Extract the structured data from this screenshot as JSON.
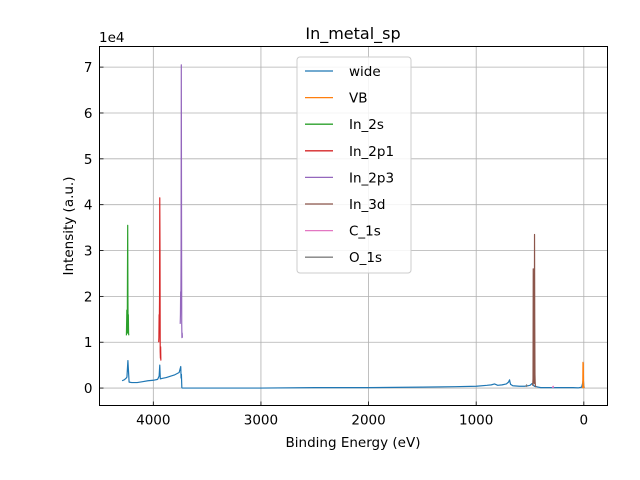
{
  "chart_data": {
    "type": "line",
    "title": "In_metal_sp",
    "xlabel": "Binding Energy (eV)",
    "ylabel": "Intensity (a.u.)",
    "y_offset_label": "1e4",
    "x_reversed": true,
    "xlim": [
      4500,
      -220
    ],
    "ylim": [
      -3800,
      74500
    ],
    "grid": true,
    "legend_position": "top-center",
    "x_ticks": [
      4000,
      3000,
      2000,
      1000,
      0
    ],
    "x_tick_labels": [
      "4000",
      "3000",
      "2000",
      "1000",
      "0"
    ],
    "y_ticks": [
      0,
      10000,
      20000,
      30000,
      40000,
      50000,
      60000,
      70000
    ],
    "y_tick_labels": [
      "0",
      "1",
      "2",
      "3",
      "4",
      "5",
      "6",
      "7"
    ],
    "series": [
      {
        "name": "wide",
        "color": "#1f77b4",
        "x": [
          4290,
          4270,
          4255,
          4245,
          4236,
          4225,
          4200,
          4150,
          4100,
          4050,
          4000,
          3960,
          3946,
          3940,
          3935,
          3920,
          3880,
          3840,
          3800,
          3760,
          3745,
          3742,
          3739,
          3735,
          3730,
          3720,
          3700,
          3500,
          3000,
          2500,
          2000,
          1500,
          1200,
          1000,
          900,
          860,
          830,
          800,
          760,
          720,
          700,
          690,
          685,
          680,
          660,
          600,
          550,
          520,
          500,
          480,
          460,
          440,
          420,
          400,
          300,
          200,
          100,
          50,
          20,
          10,
          5,
          0,
          -5
        ],
        "y": [
          1600,
          1800,
          2100,
          2400,
          6000,
          1300,
          1200,
          1200,
          1400,
          1600,
          1700,
          1900,
          2600,
          5000,
          2000,
          2100,
          2300,
          2600,
          2900,
          3400,
          4700,
          2200,
          3000,
          100,
          0,
          0,
          0,
          0,
          0,
          100,
          100,
          200,
          300,
          400,
          600,
          700,
          900,
          600,
          700,
          900,
          1300,
          1800,
          1200,
          800,
          500,
          400,
          400,
          500,
          600,
          1000,
          400,
          300,
          200,
          100,
          100,
          100,
          100,
          50,
          200,
          1200,
          2000,
          400,
          100
        ]
      },
      {
        "name": "VB",
        "color": "#ff7f0e",
        "x": [
          12,
          10,
          8,
          6,
          5,
          4,
          3,
          2,
          1,
          0,
          -1,
          -2
        ],
        "y": [
          0,
          200,
          5600,
          4800,
          5400,
          3000,
          1200,
          600,
          300,
          200,
          100,
          0
        ]
      },
      {
        "name": "In_2s",
        "color": "#2ca02c",
        "x": [
          4250,
          4248,
          4246,
          4244,
          4242,
          4240,
          4238,
          4236,
          4234,
          4232,
          4230,
          4228
        ],
        "y": [
          11500,
          14000,
          17000,
          13000,
          12000,
          25000,
          35500,
          20000,
          12000,
          16000,
          12000,
          11500
        ]
      },
      {
        "name": "In_2p1",
        "color": "#d62728",
        "x": [
          3950,
          3948,
          3946,
          3944,
          3942,
          3940,
          3938,
          3936,
          3934,
          3932,
          3930
        ],
        "y": [
          10000,
          11000,
          16000,
          14000,
          20000,
          41500,
          30000,
          8000,
          6500,
          9000,
          6000
        ]
      },
      {
        "name": "In_2p3",
        "color": "#9467bd",
        "x": [
          3750,
          3748,
          3746,
          3744,
          3742,
          3740,
          3738,
          3736,
          3734,
          3732,
          3730
        ],
        "y": [
          14000,
          16000,
          21000,
          19000,
          30000,
          70500,
          40000,
          14000,
          11000,
          12000,
          11000
        ]
      },
      {
        "name": "In_3d",
        "color": "#8c564b",
        "x": [
          475,
          472,
          470,
          468,
          466,
          464,
          462,
          460,
          458,
          456,
          454,
          452,
          450,
          448,
          446,
          444
        ],
        "y": [
          500,
          2000,
          26000,
          10000,
          3000,
          1500,
          1000,
          2000,
          33500,
          15000,
          3000,
          1200,
          600,
          400,
          300,
          300
        ]
      },
      {
        "name": "C_1s",
        "color": "#e377c2",
        "x": [
          295,
          292,
          290,
          288,
          286,
          285,
          284,
          283,
          282,
          280,
          278
        ],
        "y": [
          100,
          150,
          200,
          250,
          350,
          400,
          350,
          250,
          200,
          150,
          100
        ]
      },
      {
        "name": "O_1s",
        "color": "#7f7f7f",
        "x": [
          540,
          538,
          536,
          534,
          533,
          532,
          531,
          530,
          529,
          528,
          526
        ],
        "y": [
          300,
          350,
          400,
          500,
          600,
          700,
          650,
          550,
          450,
          350,
          300
        ]
      }
    ]
  }
}
